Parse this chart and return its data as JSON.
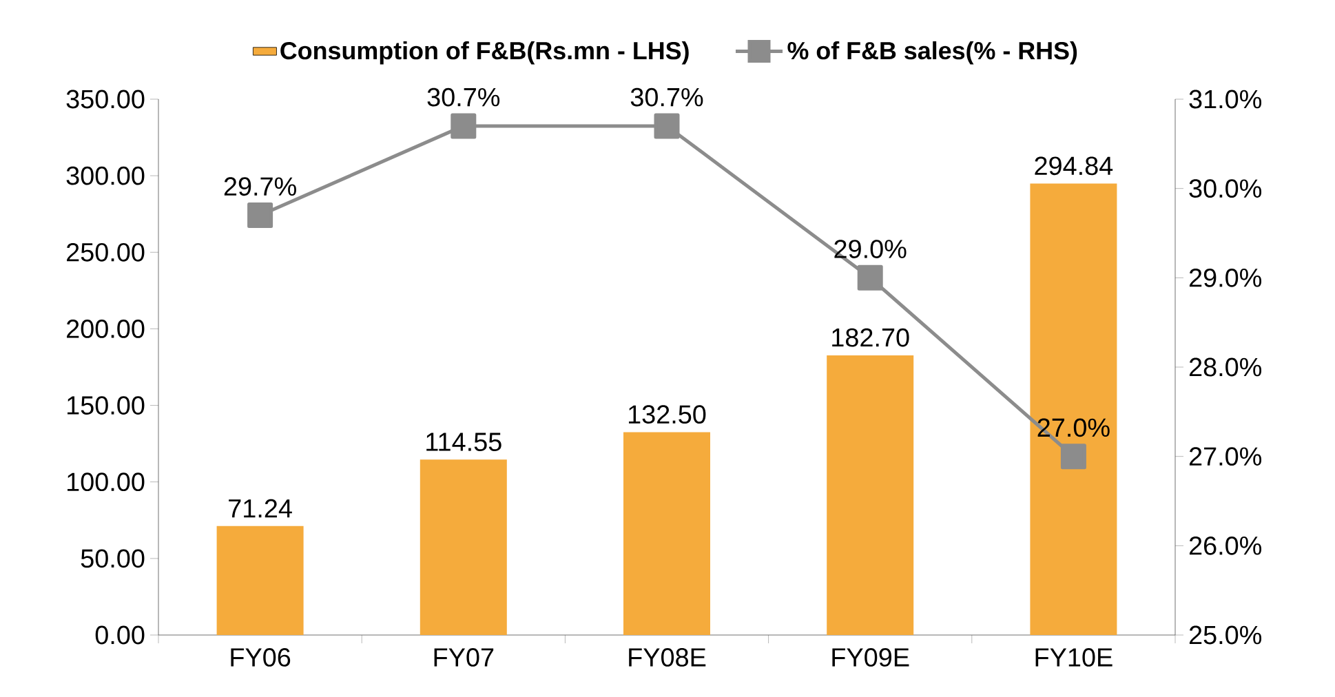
{
  "chart_data": {
    "type": "bar",
    "categories": [
      "FY06",
      "FY07",
      "FY08E",
      "FY09E",
      "FY10E"
    ],
    "series": [
      {
        "name": "Consumption of F&B(Rs.mn - LHS)",
        "color": "#f5ab3c",
        "values": [
          71.24,
          114.55,
          132.5,
          182.7,
          294.84
        ],
        "value_labels": [
          "71.24",
          "114.55",
          "132.50",
          "182.70",
          "294.84"
        ]
      },
      {
        "name": "% of F&B sales(% - RHS)",
        "type": "line",
        "axis": "y2",
        "color": "#8c8c8c",
        "marker": "square",
        "values": [
          29.7,
          30.7,
          30.7,
          29.0,
          27.0
        ],
        "value_labels": [
          "29.7%",
          "30.7%",
          "30.7%",
          "29.0%",
          "27.0%"
        ]
      }
    ],
    "ylim": [
      0,
      350
    ],
    "yticks": [
      {
        "value": 0,
        "label": "0.00"
      },
      {
        "value": 50,
        "label": "50.00"
      },
      {
        "value": 100,
        "label": "100.00"
      },
      {
        "value": 150,
        "label": "150.00"
      },
      {
        "value": 200,
        "label": "200.00"
      },
      {
        "value": 250,
        "label": "250.00"
      },
      {
        "value": 300,
        "label": "300.00"
      },
      {
        "value": 350,
        "label": "350.00"
      }
    ],
    "y2lim": [
      25,
      31
    ],
    "y2ticks": [
      {
        "value": 25,
        "label": "25.0%"
      },
      {
        "value": 26,
        "label": "26.0%"
      },
      {
        "value": 27,
        "label": "27.0%"
      },
      {
        "value": 28,
        "label": "28.0%"
      },
      {
        "value": 29,
        "label": "29.0%"
      },
      {
        "value": 30,
        "label": "30.0%"
      },
      {
        "value": 31,
        "label": "31.0%"
      }
    ],
    "legend": "top"
  }
}
